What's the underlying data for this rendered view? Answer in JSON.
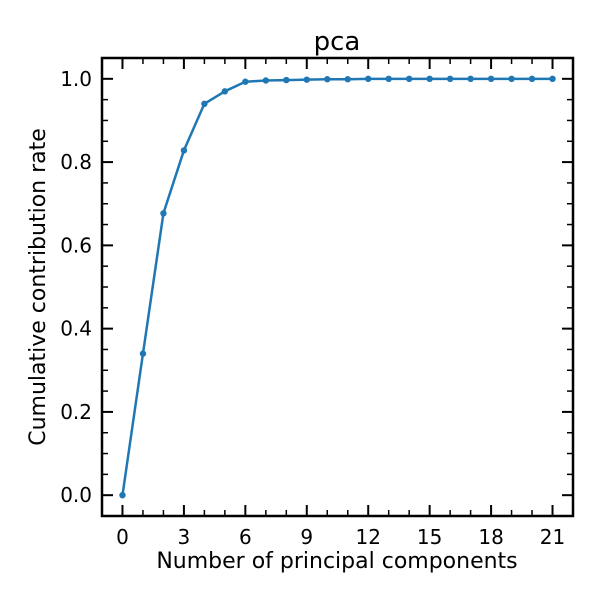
{
  "chart_data": {
    "type": "line",
    "title": "pca",
    "xlabel": "Number of principal components",
    "ylabel": "Cumulative contribution rate",
    "xlim": [
      -1,
      22
    ],
    "ylim": [
      -0.05,
      1.05
    ],
    "xticks": [
      0,
      3,
      6,
      9,
      12,
      15,
      18,
      21
    ],
    "xtick_labels": [
      "0",
      "3",
      "6",
      "9",
      "12",
      "15",
      "18",
      "21"
    ],
    "yticks": [
      0.0,
      0.2,
      0.4,
      0.6,
      0.8,
      1.0
    ],
    "ytick_labels": [
      "0.0",
      "0.2",
      "0.4",
      "0.6",
      "0.8",
      "1.0"
    ],
    "grid": false,
    "series": [
      {
        "color": "#1f77b4",
        "marker": "dot",
        "x": [
          0,
          1,
          2,
          3,
          4,
          5,
          6,
          7,
          8,
          9,
          10,
          11,
          12,
          13,
          14,
          15,
          16,
          17,
          18,
          19,
          20,
          21
        ],
        "y": [
          0.0,
          0.34,
          0.677,
          0.828,
          0.94,
          0.97,
          0.993,
          0.996,
          0.997,
          0.998,
          0.999,
          0.999,
          1.0,
          1.0,
          1.0,
          1.0,
          1.0,
          1.0,
          1.0,
          1.0,
          1.0,
          1.0
        ]
      }
    ]
  }
}
